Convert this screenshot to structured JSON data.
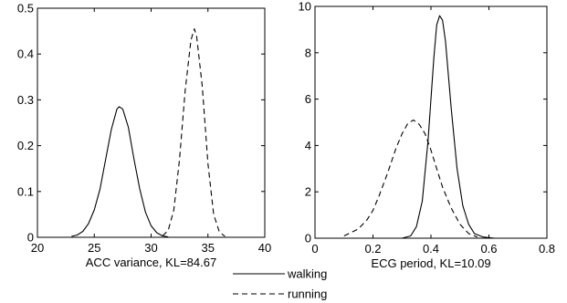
{
  "chart_data": [
    {
      "type": "line",
      "xlabel": "ACC variance, KL=84.67",
      "xlim": [
        20,
        40
      ],
      "ylim": [
        0,
        0.5
      ],
      "xticks": [
        20,
        25,
        30,
        35,
        40
      ],
      "yticks": [
        0,
        0.1,
        0.2,
        0.3,
        0.4,
        0.5
      ],
      "grid": false,
      "series": [
        {
          "name": "walking",
          "style": "solid",
          "x": [
            23.0,
            23.5,
            24.0,
            24.5,
            25.0,
            25.5,
            26.0,
            26.5,
            27.0,
            27.2,
            27.5,
            28.0,
            28.5,
            29.0,
            29.5,
            30.0,
            30.5,
            31.0,
            31.5
          ],
          "y": [
            0.002,
            0.005,
            0.013,
            0.03,
            0.06,
            0.105,
            0.17,
            0.235,
            0.28,
            0.285,
            0.28,
            0.24,
            0.17,
            0.105,
            0.055,
            0.025,
            0.01,
            0.003,
            0.001
          ]
        },
        {
          "name": "running",
          "style": "dashed",
          "x": [
            31.0,
            31.5,
            32.0,
            32.5,
            33.0,
            33.5,
            33.8,
            34.0,
            34.5,
            35.0,
            35.5,
            36.0,
            36.5
          ],
          "y": [
            0.003,
            0.015,
            0.06,
            0.17,
            0.32,
            0.43,
            0.455,
            0.44,
            0.33,
            0.16,
            0.05,
            0.012,
            0.002
          ]
        }
      ]
    },
    {
      "type": "line",
      "xlabel": "ECG period, KL=10.09",
      "xlim": [
        0,
        0.8
      ],
      "ylim": [
        0,
        10
      ],
      "xticks": [
        0,
        0.2,
        0.4,
        0.6,
        0.8
      ],
      "yticks": [
        0,
        2,
        4,
        6,
        8,
        10
      ],
      "grid": false,
      "series": [
        {
          "name": "walking",
          "style": "solid",
          "x": [
            0.3,
            0.33,
            0.35,
            0.37,
            0.39,
            0.41,
            0.42,
            0.43,
            0.44,
            0.45,
            0.47,
            0.49,
            0.51,
            0.53,
            0.55,
            0.58,
            0.62,
            0.7
          ],
          "y": [
            0.0,
            0.1,
            0.5,
            1.6,
            4.2,
            7.8,
            9.2,
            9.6,
            9.4,
            8.5,
            5.6,
            3.0,
            1.4,
            0.6,
            0.2,
            0.05,
            0.0,
            0.0
          ]
        },
        {
          "name": "running",
          "style": "dashed",
          "x": [
            0.1,
            0.15,
            0.18,
            0.2,
            0.22,
            0.25,
            0.28,
            0.3,
            0.32,
            0.34,
            0.36,
            0.38,
            0.4,
            0.42,
            0.44,
            0.47,
            0.5,
            0.53,
            0.56
          ],
          "y": [
            0.1,
            0.4,
            0.8,
            1.2,
            1.8,
            2.8,
            3.9,
            4.5,
            4.95,
            5.1,
            4.9,
            4.5,
            3.8,
            3.0,
            2.2,
            1.3,
            0.6,
            0.2,
            0.05
          ]
        }
      ]
    }
  ],
  "legend": {
    "placement": "bottom-center",
    "entries": [
      {
        "label": "walking",
        "style": "solid"
      },
      {
        "label": "running",
        "style": "dashed"
      }
    ]
  }
}
